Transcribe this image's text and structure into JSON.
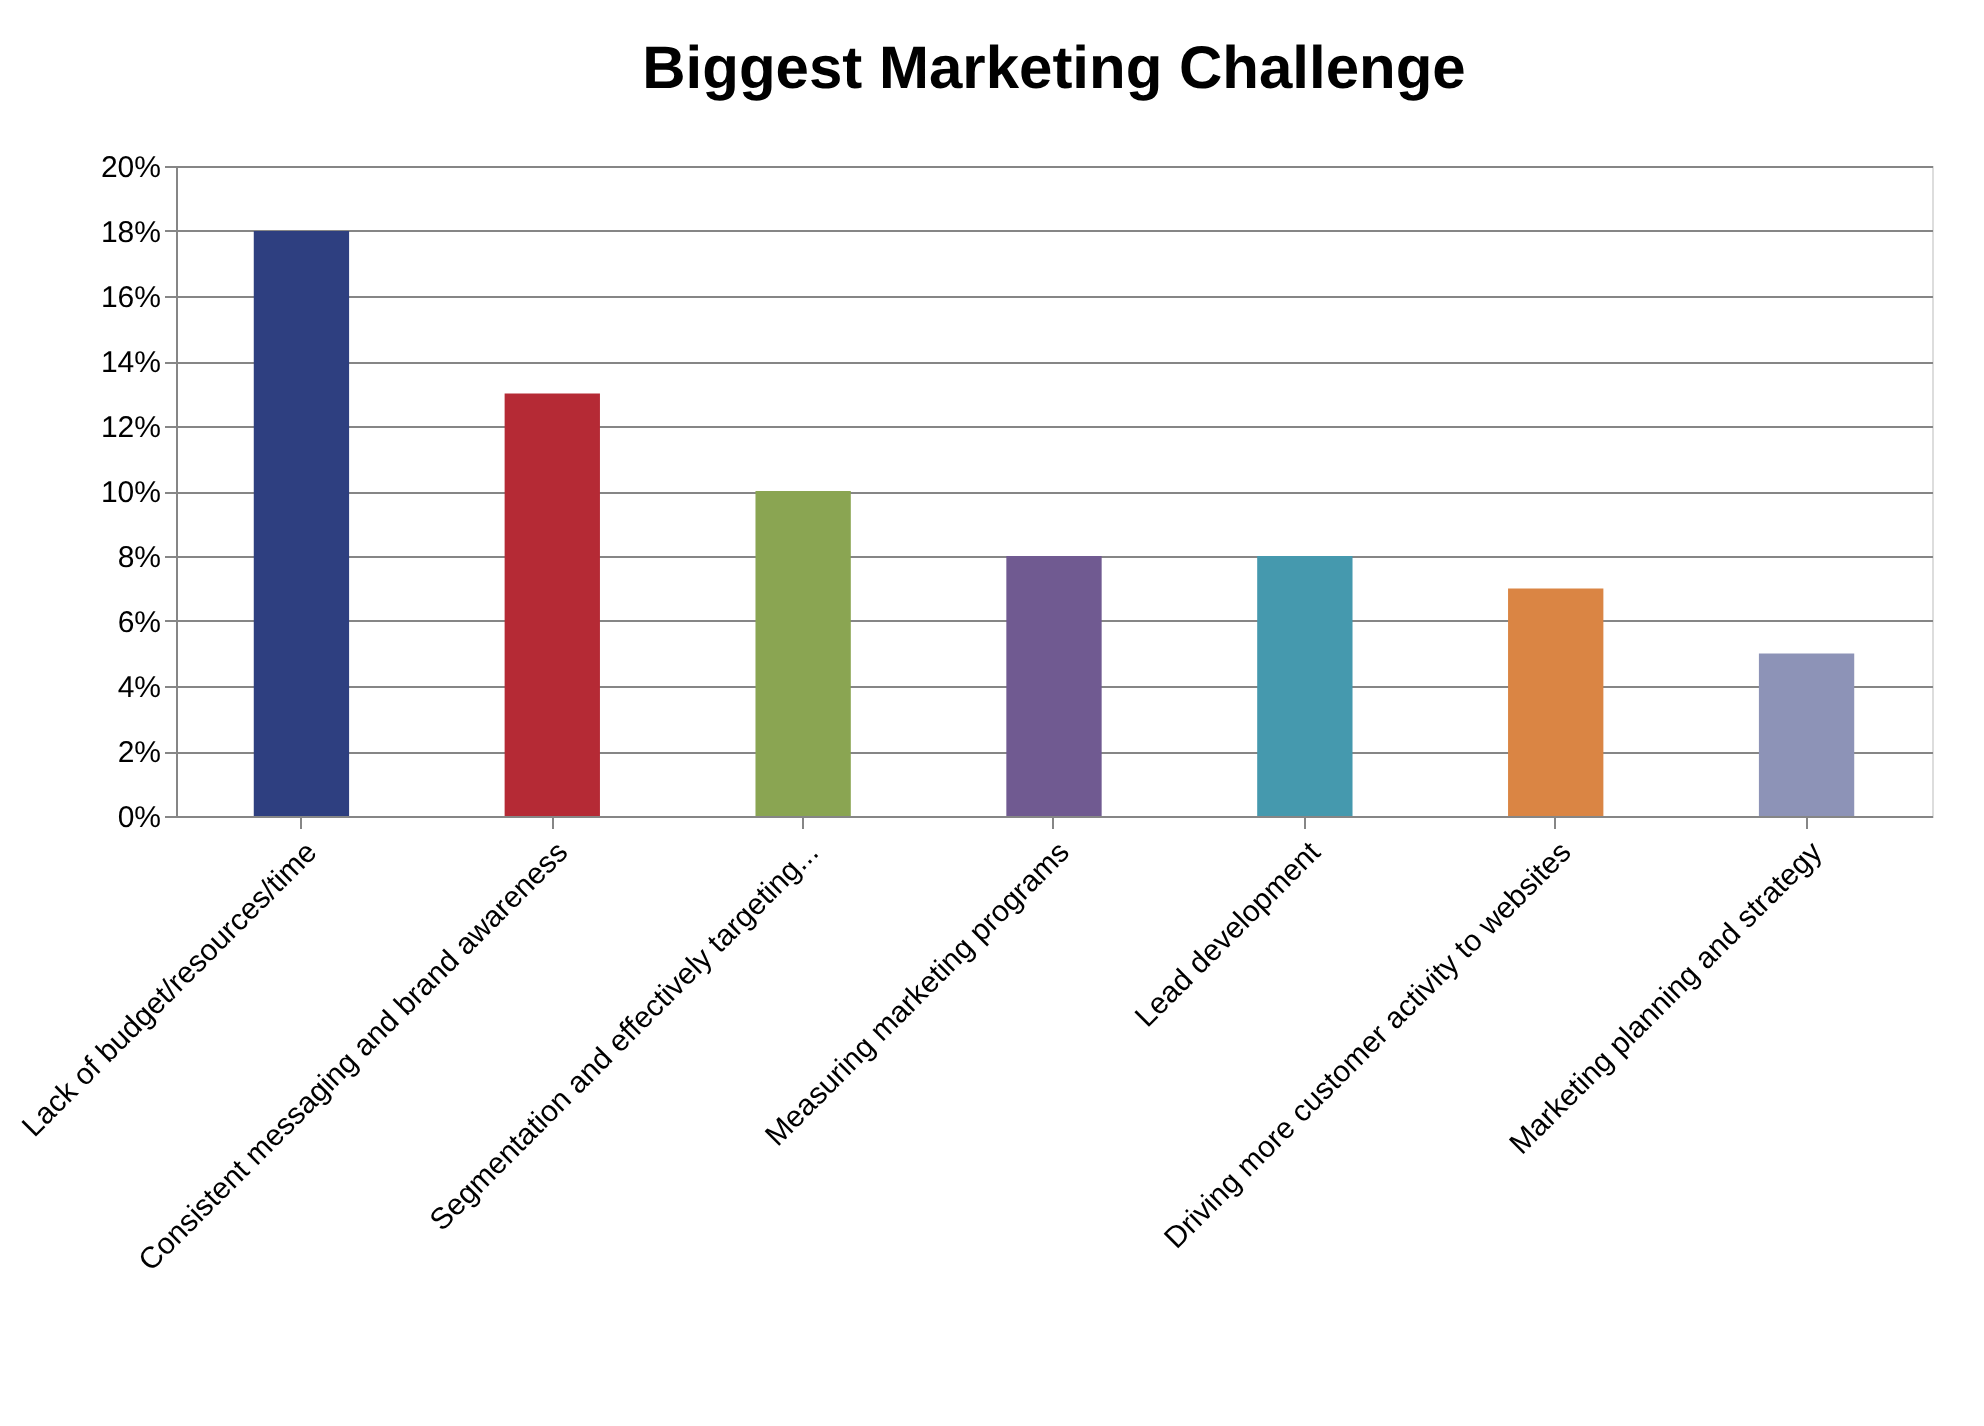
{
  "chart_data": {
    "type": "bar",
    "title": "Biggest Marketing Challenge",
    "categories": [
      "Lack of budget/resources/time",
      "Consistent messaging and brand awareness",
      "Segmentation and effectively targeting...",
      "Measuring marketing programs",
      "Lead development",
      "Driving more customer activity to websites",
      "Marketing planning and strategy"
    ],
    "values": [
      18,
      13,
      10,
      8,
      8,
      7,
      5
    ],
    "colors": [
      "#2e3f80",
      "#b52a35",
      "#8aa552",
      "#705a91",
      "#4599ae",
      "#da8544",
      "#8d93b7"
    ],
    "ylim": [
      0,
      20
    ],
    "yticks": [
      {
        "value": 0,
        "label": "0%"
      },
      {
        "value": 2,
        "label": "2%"
      },
      {
        "value": 4,
        "label": "4%"
      },
      {
        "value": 6,
        "label": "6%"
      },
      {
        "value": 8,
        "label": "8%"
      },
      {
        "value": 10,
        "label": "10%"
      },
      {
        "value": 12,
        "label": "12%"
      },
      {
        "value": 14,
        "label": "14%"
      },
      {
        "value": 16,
        "label": "16%"
      },
      {
        "value": 18,
        "label": "18%"
      },
      {
        "value": 20,
        "label": "20%"
      }
    ],
    "grid": "y",
    "legend": false
  }
}
